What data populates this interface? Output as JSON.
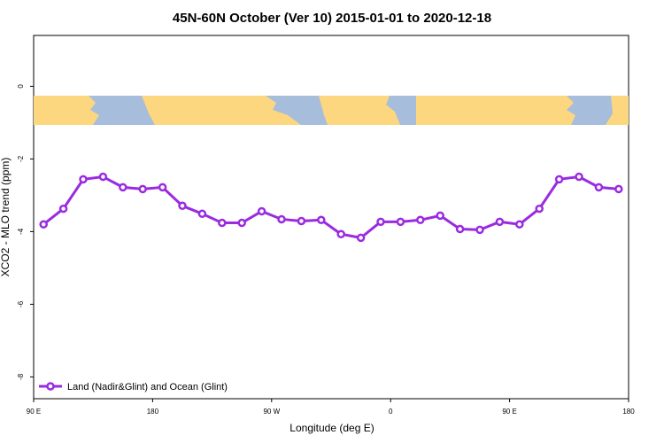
{
  "chart_data": {
    "type": "line",
    "title": "45N-60N October (Ver 10)   2015-01-01 to 2020-12-18",
    "x_label": "Longitude (deg E)",
    "y_label": "XCO2 - MLO trend (ppm)",
    "x": [
      97.5,
      112.5,
      127.5,
      142.5,
      157.5,
      172.5,
      187.5,
      202.5,
      217.5,
      232.5,
      247.5,
      262.5,
      277.5,
      292.5,
      307.5,
      322.5,
      337.5,
      352.5,
      367.5,
      382.5,
      397.5,
      412.5,
      427.5,
      442.5,
      457.5,
      472.5,
      487.5,
      502.5,
      517.5,
      532.5
    ],
    "series": [
      {
        "name": "Land (Nadir&Glint) and Ocean (Glint)",
        "color": "#9a2be0",
        "values": [
          -3.8,
          -3.37,
          -2.56,
          -2.49,
          -2.78,
          -2.83,
          -2.78,
          -3.29,
          -3.51,
          -3.76,
          -3.76,
          -3.44,
          -3.66,
          -3.71,
          -3.68,
          -4.07,
          -4.17,
          -3.73,
          -3.73,
          -3.68,
          -3.56,
          -3.93,
          -3.95,
          -3.73,
          -3.8,
          -3.37,
          -2.56,
          -2.49,
          -2.78,
          -2.83
        ]
      }
    ],
    "xlim": [
      90,
      540
    ],
    "xticks": [
      {
        "value": 90,
        "label": "90 E"
      },
      {
        "value": 180,
        "label": "180"
      },
      {
        "value": 270,
        "label": "90 W"
      },
      {
        "value": 360,
        "label": "0"
      },
      {
        "value": 450,
        "label": "90 E"
      },
      {
        "value": 540,
        "label": "180"
      }
    ],
    "ylim": [
      -8.6,
      1.4
    ],
    "yticks": [
      0,
      -2,
      -4,
      -6,
      -8
    ],
    "legend": "bottom-left"
  }
}
